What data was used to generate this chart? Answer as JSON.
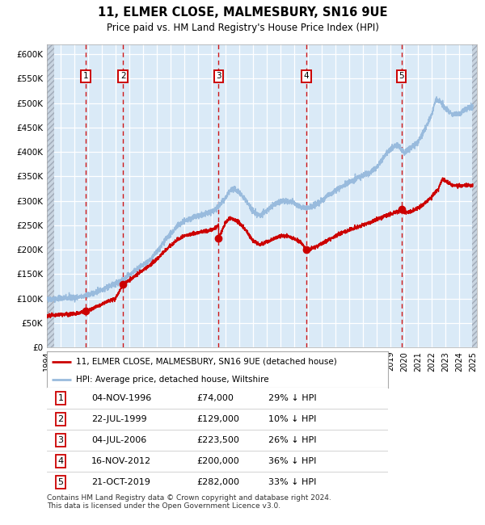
{
  "title": "11, ELMER CLOSE, MALMESBURY, SN16 9UE",
  "subtitle": "Price paid vs. HM Land Registry's House Price Index (HPI)",
  "ylim": [
    0,
    620000
  ],
  "xlim_start": 1994.0,
  "xlim_end": 2025.3,
  "yticks": [
    0,
    50000,
    100000,
    150000,
    200000,
    250000,
    300000,
    350000,
    400000,
    450000,
    500000,
    550000,
    600000
  ],
  "ytick_labels": [
    "£0",
    "£50K",
    "£100K",
    "£150K",
    "£200K",
    "£250K",
    "£300K",
    "£350K",
    "£400K",
    "£450K",
    "£500K",
    "£550K",
    "£600K"
  ],
  "bg_color": "#daeaf7",
  "hpi_line_color": "#99bbdd",
  "price_line_color": "#cc0000",
  "dot_color": "#cc0000",
  "vline_color": "#cc0000",
  "grid_color": "#ffffff",
  "sale_points": [
    {
      "year": 1996.84,
      "price": 74000,
      "label": "1"
    },
    {
      "year": 1999.55,
      "price": 129000,
      "label": "2"
    },
    {
      "year": 2006.5,
      "price": 223500,
      "label": "3"
    },
    {
      "year": 2012.87,
      "price": 200000,
      "label": "4"
    },
    {
      "year": 2019.8,
      "price": 282000,
      "label": "5"
    }
  ],
  "hpi_anchors": [
    [
      1994.0,
      98000
    ],
    [
      1994.5,
      99000
    ],
    [
      1995.0,
      100000
    ],
    [
      1995.5,
      101000
    ],
    [
      1996.0,
      101500
    ],
    [
      1996.5,
      103000
    ],
    [
      1997.0,
      107000
    ],
    [
      1997.5,
      112000
    ],
    [
      1998.0,
      118000
    ],
    [
      1998.5,
      124000
    ],
    [
      1999.0,
      130000
    ],
    [
      1999.5,
      138000
    ],
    [
      2000.0,
      148000
    ],
    [
      2000.5,
      158000
    ],
    [
      2001.0,
      168000
    ],
    [
      2001.5,
      178000
    ],
    [
      2002.0,
      195000
    ],
    [
      2002.5,
      215000
    ],
    [
      2003.0,
      232000
    ],
    [
      2003.5,
      248000
    ],
    [
      2004.0,
      258000
    ],
    [
      2004.5,
      265000
    ],
    [
      2005.0,
      268000
    ],
    [
      2005.5,
      272000
    ],
    [
      2006.0,
      278000
    ],
    [
      2006.5,
      288000
    ],
    [
      2007.0,
      305000
    ],
    [
      2007.3,
      320000
    ],
    [
      2007.6,
      325000
    ],
    [
      2008.0,
      318000
    ],
    [
      2008.5,
      300000
    ],
    [
      2009.0,
      278000
    ],
    [
      2009.5,
      270000
    ],
    [
      2010.0,
      280000
    ],
    [
      2010.5,
      292000
    ],
    [
      2011.0,
      298000
    ],
    [
      2011.5,
      300000
    ],
    [
      2012.0,
      295000
    ],
    [
      2012.5,
      287000
    ],
    [
      2013.0,
      285000
    ],
    [
      2013.5,
      290000
    ],
    [
      2014.0,
      300000
    ],
    [
      2014.5,
      312000
    ],
    [
      2015.0,
      320000
    ],
    [
      2015.5,
      330000
    ],
    [
      2016.0,
      338000
    ],
    [
      2016.5,
      345000
    ],
    [
      2017.0,
      352000
    ],
    [
      2017.5,
      358000
    ],
    [
      2018.0,
      368000
    ],
    [
      2018.5,
      390000
    ],
    [
      2019.0,
      405000
    ],
    [
      2019.5,
      415000
    ],
    [
      2020.0,
      398000
    ],
    [
      2020.5,
      408000
    ],
    [
      2021.0,
      420000
    ],
    [
      2021.5,
      445000
    ],
    [
      2022.0,
      475000
    ],
    [
      2022.3,
      508000
    ],
    [
      2022.7,
      500000
    ],
    [
      2023.0,
      490000
    ],
    [
      2023.5,
      478000
    ],
    [
      2024.0,
      478000
    ],
    [
      2024.5,
      488000
    ],
    [
      2025.0,
      492000
    ]
  ],
  "price_anchors": [
    [
      1994.0,
      65000
    ],
    [
      1994.5,
      66000
    ],
    [
      1995.0,
      67000
    ],
    [
      1995.5,
      68000
    ],
    [
      1996.0,
      68500
    ],
    [
      1996.84,
      74000
    ],
    [
      1997.0,
      76000
    ],
    [
      1997.5,
      82000
    ],
    [
      1998.0,
      88000
    ],
    [
      1998.5,
      95000
    ],
    [
      1999.0,
      100000
    ],
    [
      1999.55,
      129000
    ],
    [
      2000.0,
      138000
    ],
    [
      2000.5,
      148000
    ],
    [
      2001.0,
      158000
    ],
    [
      2001.5,
      168000
    ],
    [
      2002.0,
      180000
    ],
    [
      2002.5,
      195000
    ],
    [
      2003.0,
      208000
    ],
    [
      2003.5,
      220000
    ],
    [
      2004.0,
      228000
    ],
    [
      2004.5,
      232000
    ],
    [
      2005.0,
      235000
    ],
    [
      2005.5,
      238000
    ],
    [
      2006.0,
      240000
    ],
    [
      2006.5,
      250000
    ],
    [
      2006.5,
      223500
    ],
    [
      2007.0,
      255000
    ],
    [
      2007.3,
      265000
    ],
    [
      2007.6,
      262000
    ],
    [
      2008.0,
      255000
    ],
    [
      2008.5,
      240000
    ],
    [
      2009.0,
      218000
    ],
    [
      2009.5,
      210000
    ],
    [
      2010.0,
      215000
    ],
    [
      2010.5,
      222000
    ],
    [
      2011.0,
      228000
    ],
    [
      2011.5,
      228000
    ],
    [
      2012.0,
      222000
    ],
    [
      2012.5,
      215000
    ],
    [
      2012.87,
      200000
    ],
    [
      2013.0,
      200000
    ],
    [
      2013.5,
      205000
    ],
    [
      2014.0,
      212000
    ],
    [
      2014.5,
      220000
    ],
    [
      2015.0,
      228000
    ],
    [
      2015.5,
      235000
    ],
    [
      2016.0,
      240000
    ],
    [
      2016.5,
      245000
    ],
    [
      2017.0,
      250000
    ],
    [
      2017.5,
      255000
    ],
    [
      2018.0,
      262000
    ],
    [
      2018.5,
      268000
    ],
    [
      2019.0,
      272000
    ],
    [
      2019.5,
      278000
    ],
    [
      2019.8,
      282000
    ],
    [
      2020.0,
      275000
    ],
    [
      2020.5,
      278000
    ],
    [
      2021.0,
      285000
    ],
    [
      2021.5,
      295000
    ],
    [
      2022.0,
      308000
    ],
    [
      2022.5,
      325000
    ],
    [
      2022.8,
      345000
    ],
    [
      2023.0,
      340000
    ],
    [
      2023.5,
      332000
    ],
    [
      2024.0,
      330000
    ],
    [
      2024.5,
      332000
    ],
    [
      2025.0,
      330000
    ]
  ],
  "legend_line1": "11, ELMER CLOSE, MALMESBURY, SN16 9UE (detached house)",
  "legend_line2": "HPI: Average price, detached house, Wiltshire",
  "table_rows": [
    [
      "1",
      "04-NOV-1996",
      "£74,000",
      "29% ↓ HPI"
    ],
    [
      "2",
      "22-JUL-1999",
      "£129,000",
      "10% ↓ HPI"
    ],
    [
      "3",
      "04-JUL-2006",
      "£223,500",
      "26% ↓ HPI"
    ],
    [
      "4",
      "16-NOV-2012",
      "£200,000",
      "36% ↓ HPI"
    ],
    [
      "5",
      "21-OCT-2019",
      "£282,000",
      "33% ↓ HPI"
    ]
  ],
  "footer": "Contains HM Land Registry data © Crown copyright and database right 2024.\nThis data is licensed under the Open Government Licence v3.0.",
  "xticks": [
    1994,
    1995,
    1996,
    1997,
    1998,
    1999,
    2000,
    2001,
    2002,
    2003,
    2004,
    2005,
    2006,
    2007,
    2008,
    2009,
    2010,
    2011,
    2012,
    2013,
    2014,
    2015,
    2016,
    2017,
    2018,
    2019,
    2020,
    2021,
    2022,
    2023,
    2024,
    2025
  ]
}
